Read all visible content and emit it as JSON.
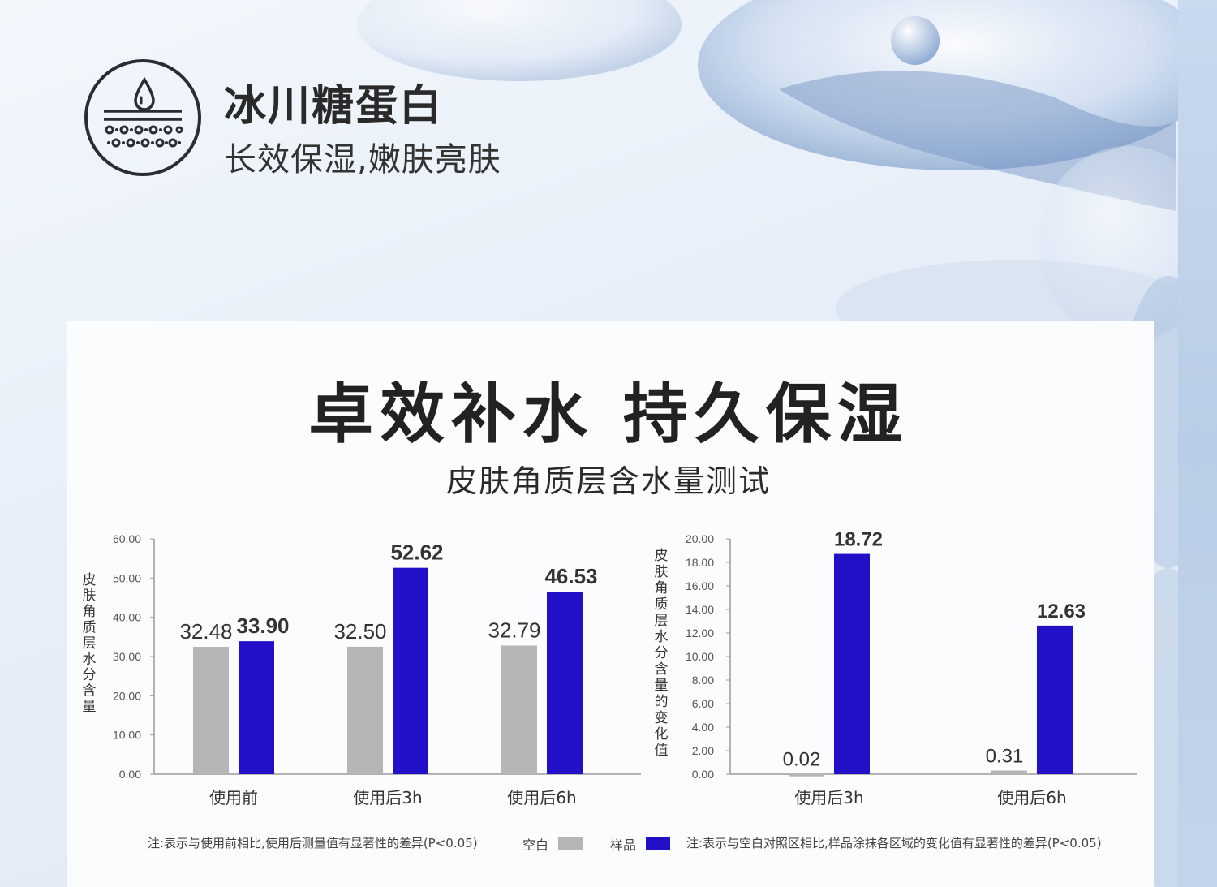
{
  "header": {
    "title": "冰川糖蛋白",
    "subtitle": "长效保湿,嫩肤亮肤",
    "icon": "skin-moisture-icon"
  },
  "main_title": "卓效补水 持久保湿",
  "sub_title": "皮肤角质层含水量测试",
  "colors": {
    "blank": "#b5b5b8",
    "sample": "#2210c8",
    "axis": "#999999",
    "text": "#333333"
  },
  "legend": {
    "blank_label": "空白",
    "sample_label": "样品"
  },
  "notes": {
    "left": "注:表示与使用前相比,使用后测量值有显著性的差异(P<0.05)",
    "right": "注:表示与空白对照区相比,样品涂抹各区域的变化值有显著性的差异(P<0.05)"
  },
  "chart_data": [
    {
      "type": "bar",
      "categories": [
        "使用前",
        "使用后3h",
        "使用后6h"
      ],
      "series": [
        {
          "name": "空白",
          "values": [
            32.48,
            32.5,
            32.79
          ],
          "labels": [
            "32.48",
            "32.50",
            "32.79"
          ]
        },
        {
          "name": "样品",
          "values": [
            33.9,
            52.62,
            46.53
          ],
          "labels": [
            "33.90",
            "52.62",
            "46.53"
          ]
        }
      ],
      "ylabel": "皮肤角质层水分含量",
      "ylim": [
        0,
        60
      ],
      "yticks": [
        "0.00",
        "10.00",
        "20.00",
        "30.00",
        "40.00",
        "50.00",
        "60.00"
      ],
      "grid": false
    },
    {
      "type": "bar",
      "categories": [
        "使用后3h",
        "使用后6h"
      ],
      "series": [
        {
          "name": "空白",
          "values": [
            0.02,
            0.31
          ],
          "labels": [
            "0.02",
            "0.31"
          ]
        },
        {
          "name": "样品",
          "values": [
            18.72,
            12.63
          ],
          "labels": [
            "18.72",
            "12.63"
          ]
        }
      ],
      "ylabel": "皮肤角质层水分含量的变化值",
      "ylim": [
        0,
        20
      ],
      "yticks": [
        "0.00",
        "2.00",
        "4.00",
        "6.00",
        "8.00",
        "10.00",
        "12.00",
        "14.00",
        "16.00",
        "18.00",
        "20.00"
      ],
      "grid": false
    }
  ]
}
